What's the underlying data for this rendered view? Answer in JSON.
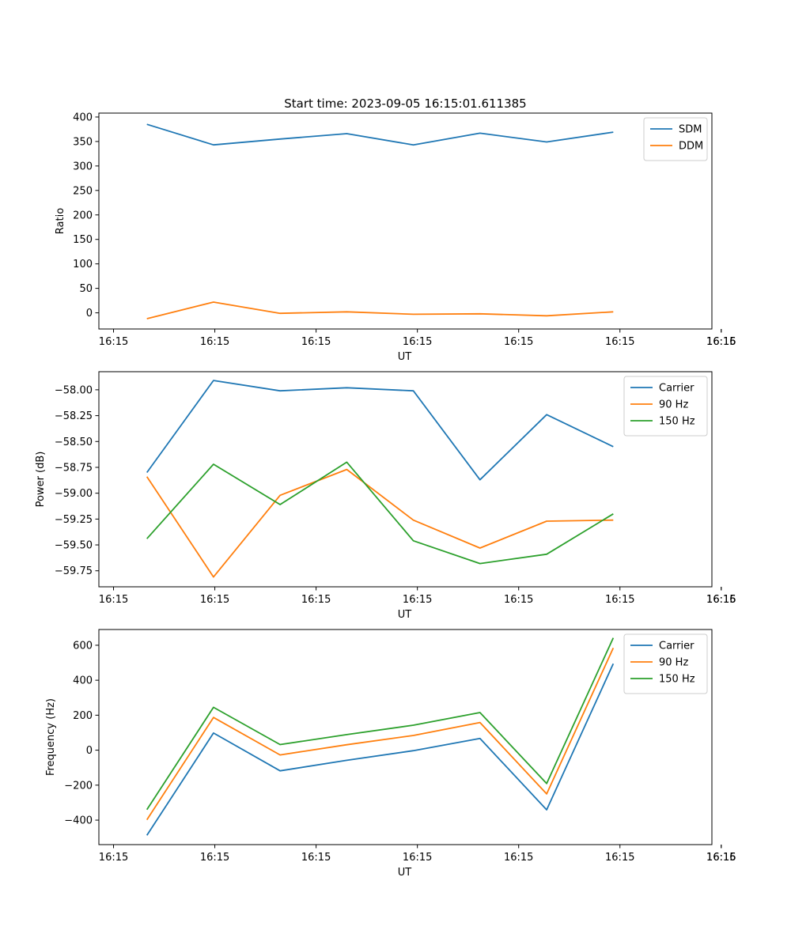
{
  "title": "Start time: 2023-09-05 16:15:01.611385",
  "colors": {
    "c0": "#1f77b4",
    "c1": "#ff7f0e",
    "c2": "#2ca02c"
  },
  "chart_data": [
    {
      "type": "line",
      "xlabel": "UT",
      "ylabel": "Ratio",
      "x_tick_labels": [
        "16:15",
        "16:15",
        "16:15",
        "16:15",
        "16:15",
        "16:15",
        "16:15"
      ],
      "x_tick_last": "16:16",
      "y_ticks": [
        0,
        50,
        100,
        150,
        200,
        250,
        300,
        350,
        400
      ],
      "ylim": [
        -33,
        408
      ],
      "x": [
        1,
        2,
        3,
        4,
        5,
        6,
        7,
        8
      ],
      "xlim": [
        0.28,
        9.48
      ],
      "legend": "top-right",
      "series": [
        {
          "name": "SDM",
          "values": [
            385,
            343,
            355,
            366,
            343,
            367,
            349,
            369
          ]
        },
        {
          "name": "DDM",
          "values": [
            -12,
            22,
            -1,
            2,
            -3,
            -2,
            -6,
            2
          ]
        }
      ]
    },
    {
      "type": "line",
      "xlabel": "UT",
      "ylabel": "Power (dB)",
      "x_tick_labels": [
        "16:15",
        "16:15",
        "16:15",
        "16:15",
        "16:15",
        "16:15",
        "16:15"
      ],
      "x_tick_last": "16:16",
      "y_ticks": [
        -59.75,
        -59.5,
        -59.25,
        -59.0,
        -58.75,
        -58.5,
        -58.25,
        -58.0
      ],
      "y_tick_labels": [
        "−59.75",
        "−59.50",
        "−59.25",
        "−59.00",
        "−58.75",
        "−58.50",
        "−58.25",
        "−58.00"
      ],
      "ylim": [
        -59.905,
        -57.825
      ],
      "x": [
        1,
        2,
        3,
        4,
        5,
        6,
        7,
        8
      ],
      "xlim": [
        0.28,
        9.48
      ],
      "legend": "top-right",
      "series": [
        {
          "name": "Carrier",
          "values": [
            -58.8,
            -57.91,
            -58.01,
            -57.98,
            -58.01,
            -58.87,
            -58.24,
            -58.55
          ]
        },
        {
          "name": "90 Hz",
          "values": [
            -58.84,
            -59.81,
            -59.02,
            -58.77,
            -59.26,
            -59.53,
            -59.27,
            -59.26
          ]
        },
        {
          "name": "150 Hz",
          "values": [
            -59.44,
            -58.72,
            -59.11,
            -58.7,
            -59.46,
            -59.68,
            -59.59,
            -59.2
          ]
        }
      ]
    },
    {
      "type": "line",
      "xlabel": "UT",
      "ylabel": "Frequency (Hz)",
      "x_tick_labels": [
        "16:15",
        "16:15",
        "16:15",
        "16:15",
        "16:15",
        "16:15",
        "16:15"
      ],
      "x_tick_last": "16:16",
      "y_ticks": [
        -400,
        -200,
        0,
        200,
        400,
        600
      ],
      "y_tick_labels": [
        "−400",
        "−200",
        "0",
        "200",
        "400",
        "600"
      ],
      "ylim": [
        -540,
        690
      ],
      "x": [
        1,
        2,
        3,
        4,
        5,
        6,
        7,
        8
      ],
      "xlim": [
        0.28,
        9.48
      ],
      "legend": "top-right",
      "series": [
        {
          "name": "Carrier",
          "values": [
            -487,
            98,
            -118,
            -58,
            -3,
            67,
            -341,
            494
          ]
        },
        {
          "name": "90 Hz",
          "values": [
            -398,
            187,
            -27,
            31,
            84,
            158,
            -250,
            584
          ]
        },
        {
          "name": "150 Hz",
          "values": [
            -340,
            245,
            32,
            89,
            143,
            215,
            -191,
            642
          ]
        }
      ]
    }
  ]
}
